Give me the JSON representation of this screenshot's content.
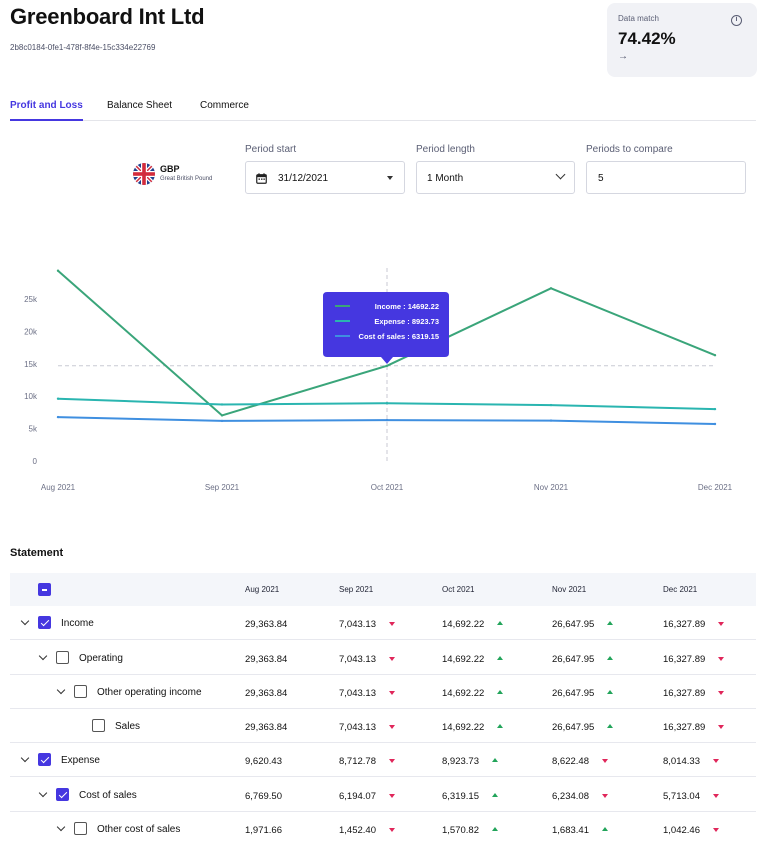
{
  "header": {
    "company": "Greenboard Int Ltd",
    "company_id": "2b8c0184-0fe1-478f-8f4e-15c334e22769"
  },
  "data_match": {
    "label": "Data match",
    "value": "74.42%",
    "arrow": "→",
    "info_icon": "i"
  },
  "tabs": [
    {
      "label": "Profit and Loss",
      "active": true
    },
    {
      "label": "Balance Sheet",
      "active": false
    },
    {
      "label": "Commerce",
      "active": false
    }
  ],
  "currency": {
    "code": "GBP",
    "name": "Great British Pound",
    "icon": "uk-flag-icon"
  },
  "period_start": {
    "label": "Period start",
    "value": "31/12/2021"
  },
  "period_length": {
    "label": "Period length",
    "value": "1 Month"
  },
  "periods_compare": {
    "label": "Periods to compare",
    "value": "5"
  },
  "colors": {
    "income": "#3aa57a",
    "expense": "#2ab5b0",
    "cost_of_sales": "#3f8fe0",
    "accent": "#4537e0",
    "down": "#e0265a",
    "up": "#22a45a"
  },
  "chart_data": {
    "type": "line",
    "categories": [
      "Aug 2021",
      "Sep 2021",
      "Oct 2021",
      "Nov 2021",
      "Dec 2021"
    ],
    "series": [
      {
        "name": "Income",
        "values": [
          29363.84,
          7043.13,
          14692.22,
          26647.95,
          16327.89
        ]
      },
      {
        "name": "Expense",
        "values": [
          9620.43,
          8712.78,
          8923.73,
          8622.48,
          8014.33
        ]
      },
      {
        "name": "Cost of sales",
        "values": [
          6769.5,
          6194.07,
          6319.15,
          6234.08,
          5713.04
        ]
      }
    ],
    "y_ticks": [
      "0",
      "5k",
      "10k",
      "15k",
      "20k",
      "25k"
    ],
    "ylim": [
      0,
      30000
    ],
    "tooltip": {
      "category": "Oct 2021",
      "lines": [
        "Income : 14692.22",
        "Expense : 8923.73",
        "Cost of sales : 6319.15"
      ]
    }
  },
  "statement": {
    "title": "Statement",
    "columns": [
      "Aug 2021",
      "Sep 2021",
      "Oct 2021",
      "Nov 2021",
      "Dec 2021"
    ],
    "rows": [
      {
        "label": "Income",
        "level": 0,
        "expandable": true,
        "checked": true,
        "values": [
          "29,363.84",
          "7,043.13",
          "14,692.22",
          "26,647.95",
          "16,327.89"
        ],
        "trends": [
          "",
          "down",
          "up",
          "up",
          "down"
        ]
      },
      {
        "label": "Operating",
        "level": 1,
        "expandable": true,
        "checked": false,
        "values": [
          "29,363.84",
          "7,043.13",
          "14,692.22",
          "26,647.95",
          "16,327.89"
        ],
        "trends": [
          "",
          "down",
          "up",
          "up",
          "down"
        ]
      },
      {
        "label": "Other operating income",
        "level": 2,
        "expandable": true,
        "checked": false,
        "values": [
          "29,363.84",
          "7,043.13",
          "14,692.22",
          "26,647.95",
          "16,327.89"
        ],
        "trends": [
          "",
          "down",
          "up",
          "up",
          "down"
        ]
      },
      {
        "label": "Sales",
        "level": 3,
        "expandable": false,
        "checked": false,
        "values": [
          "29,363.84",
          "7,043.13",
          "14,692.22",
          "26,647.95",
          "16,327.89"
        ],
        "trends": [
          "",
          "down",
          "up",
          "up",
          "down"
        ]
      },
      {
        "label": "Expense",
        "level": 0,
        "expandable": true,
        "checked": true,
        "values": [
          "9,620.43",
          "8,712.78",
          "8,923.73",
          "8,622.48",
          "8,014.33"
        ],
        "trends": [
          "",
          "down",
          "up",
          "down",
          "down"
        ]
      },
      {
        "label": "Cost of sales",
        "level": 1,
        "expandable": true,
        "checked": true,
        "values": [
          "6,769.50",
          "6,194.07",
          "6,319.15",
          "6,234.08",
          "5,713.04"
        ],
        "trends": [
          "",
          "down",
          "up",
          "down",
          "down"
        ]
      },
      {
        "label": "Other cost of sales",
        "level": 2,
        "expandable": true,
        "checked": false,
        "values": [
          "1,971.66",
          "1,452.40",
          "1,570.82",
          "1,683.41",
          "1,042.46"
        ],
        "trends": [
          "",
          "down",
          "up",
          "up",
          "down"
        ]
      }
    ]
  }
}
